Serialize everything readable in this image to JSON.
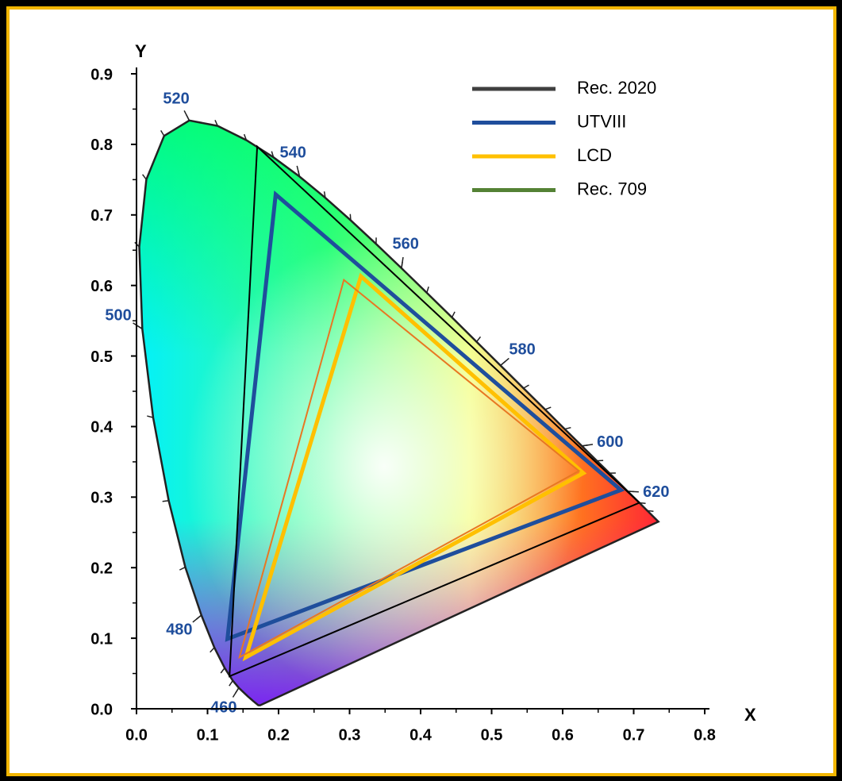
{
  "chart_data": {
    "type": "gamut",
    "x_label": "X",
    "y_label": "Y",
    "xlim": [
      0,
      0.8
    ],
    "ylim": [
      0,
      0.9
    ],
    "xticks": [
      {
        "value": 0,
        "label": "0.0"
      },
      {
        "value": 0.1,
        "label": "0.1"
      },
      {
        "value": 0.2,
        "label": "0.2"
      },
      {
        "value": 0.3,
        "label": "0.3"
      },
      {
        "value": 0.4,
        "label": "0.4"
      },
      {
        "value": 0.5,
        "label": "0.5"
      },
      {
        "value": 0.6,
        "label": "0.6"
      },
      {
        "value": 0.7,
        "label": "0.7"
      },
      {
        "value": 0.8,
        "label": "0.8"
      }
    ],
    "yticks": [
      {
        "value": 0,
        "label": "0.0"
      },
      {
        "value": 0.1,
        "label": "0.1"
      },
      {
        "value": 0.2,
        "label": "0.2"
      },
      {
        "value": 0.3,
        "label": "0.3"
      },
      {
        "value": 0.4,
        "label": "0.4"
      },
      {
        "value": 0.5,
        "label": "0.5"
      },
      {
        "value": 0.6,
        "label": "0.6"
      },
      {
        "value": 0.7,
        "label": "0.7"
      },
      {
        "value": 0.8,
        "label": "0.8"
      },
      {
        "value": 0.9,
        "label": "0.9"
      }
    ],
    "wavelength_labels": [
      460,
      480,
      500,
      520,
      540,
      560,
      580,
      600,
      620
    ],
    "wavelength_color": "#1f4e9c",
    "legend": "top-right",
    "series": [
      {
        "name": "Rec. 2020",
        "color": "#000000",
        "legend_color": "#404040",
        "x": [
          0.708,
          0.17,
          0.131
        ],
        "values": [
          0.292,
          0.797,
          0.046
        ]
      },
      {
        "name": "UTVIII",
        "color": "#1f4e9c",
        "x": [
          0.682,
          0.196,
          0.128
        ],
        "values": [
          0.31,
          0.729,
          0.099
        ]
      },
      {
        "name": "LCD",
        "color": "#ffc000",
        "x": [
          0.629,
          0.316,
          0.154
        ],
        "values": [
          0.334,
          0.613,
          0.073
        ]
      },
      {
        "name": "Rec. 709",
        "color": "#e87722",
        "legend_color": "#548235",
        "x": [
          0.623,
          0.292,
          0.145
        ],
        "values": [
          0.337,
          0.608,
          0.073
        ]
      }
    ]
  }
}
